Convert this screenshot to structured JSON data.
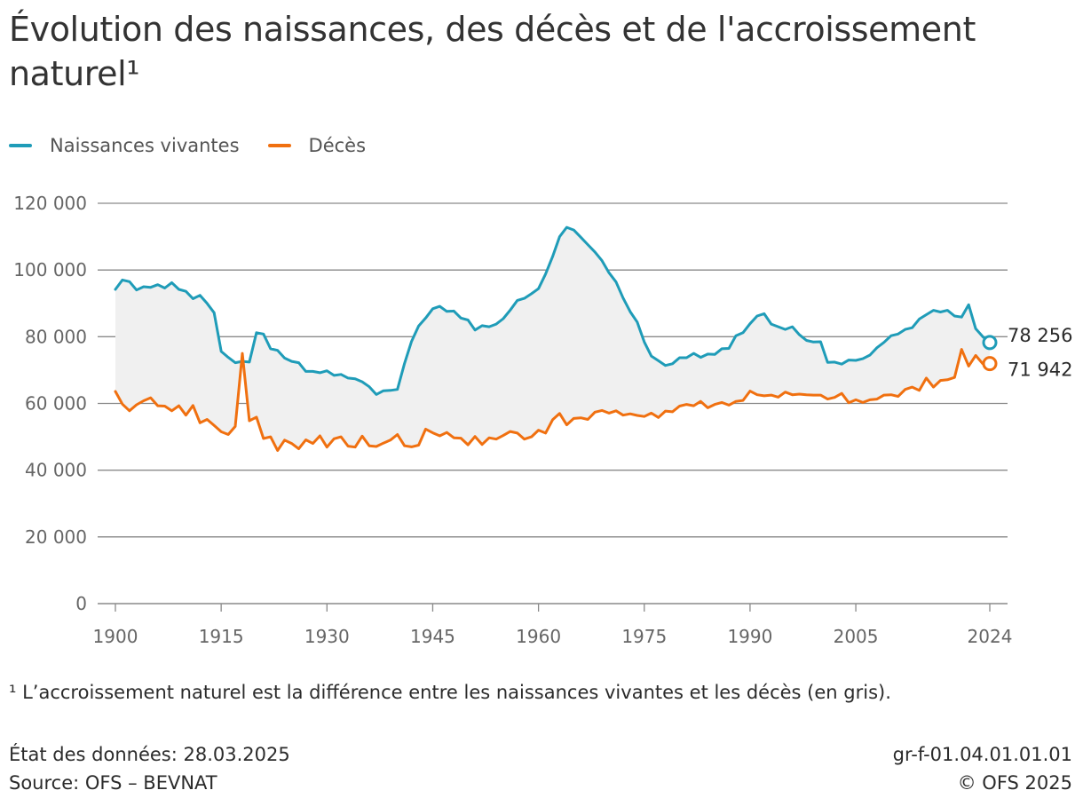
{
  "chart": {
    "title": "Évolution des naissances, des décès et de l'accroissement naturel¹",
    "footnote": "¹ L’accroissement naturel est la différence entre les naissances vivantes et les décès (en gris).",
    "data_state": "État des données: 28.03.2025",
    "source": "Source: OFS – BEVNAT",
    "code": "gr-f-01.04.01.01.01",
    "copyright": "© OFS 2025",
    "legend": [
      {
        "label": "Naissances vivantes",
        "color": "#1f9cb8"
      },
      {
        "label": "Décès",
        "color": "#f07010"
      }
    ]
  },
  "chart_data": {
    "type": "line",
    "title": "Évolution des naissances, des décès et de l'accroissement naturel¹",
    "xlabel": "",
    "ylabel": "",
    "xlim": [
      1900,
      2024
    ],
    "ylim": [
      0,
      120000
    ],
    "x_ticks": [
      1900,
      1915,
      1930,
      1945,
      1960,
      1975,
      1990,
      2005,
      2024
    ],
    "x_tick_labels": [
      "1900",
      "1915",
      "1930",
      "1945",
      "1960",
      "1975",
      "1990",
      "2005",
      "2024"
    ],
    "y_ticks": [
      0,
      20000,
      40000,
      60000,
      80000,
      100000,
      120000
    ],
    "y_tick_labels": [
      "0",
      "20 000",
      "40 000",
      "60 000",
      "80 000",
      "100 000",
      "120 000"
    ],
    "grid": "horizontal",
    "legend_position": "top-left",
    "fill_between": {
      "color": "#f0f0f0",
      "meaning": "accroissement naturel"
    },
    "end_labels": [
      "78 256",
      "71 942"
    ],
    "x": [
      1900,
      1901,
      1902,
      1903,
      1904,
      1905,
      1906,
      1907,
      1908,
      1909,
      1910,
      1911,
      1912,
      1913,
      1914,
      1915,
      1916,
      1917,
      1918,
      1919,
      1920,
      1921,
      1922,
      1923,
      1924,
      1925,
      1926,
      1927,
      1928,
      1929,
      1930,
      1931,
      1932,
      1933,
      1934,
      1935,
      1936,
      1937,
      1938,
      1939,
      1940,
      1941,
      1942,
      1943,
      1944,
      1945,
      1946,
      1947,
      1948,
      1949,
      1950,
      1951,
      1952,
      1953,
      1954,
      1955,
      1956,
      1957,
      1958,
      1959,
      1960,
      1961,
      1962,
      1963,
      1964,
      1965,
      1966,
      1967,
      1968,
      1969,
      1970,
      1971,
      1972,
      1973,
      1974,
      1975,
      1976,
      1977,
      1978,
      1979,
      1980,
      1981,
      1982,
      1983,
      1984,
      1985,
      1986,
      1987,
      1988,
      1989,
      1990,
      1991,
      1992,
      1993,
      1994,
      1995,
      1996,
      1997,
      1998,
      1999,
      2000,
      2001,
      2002,
      2003,
      2004,
      2005,
      2006,
      2007,
      2008,
      2009,
      2010,
      2011,
      2012,
      2013,
      2014,
      2015,
      2016,
      2017,
      2018,
      2019,
      2020,
      2021,
      2022,
      2023,
      2024
    ],
    "series": [
      {
        "name": "Naissances vivantes",
        "color": "#1f9cb8",
        "values": [
          94200,
          97000,
          96500,
          94000,
          95000,
          94800,
          95600,
          94600,
          96200,
          94200,
          93600,
          91400,
          92400,
          90000,
          87200,
          75600,
          73800,
          72200,
          72600,
          72400,
          81200,
          80800,
          76400,
          75900,
          73600,
          72600,
          72200,
          69600,
          69600,
          69200,
          69800,
          68400,
          68700,
          67600,
          67400,
          66500,
          65000,
          62700,
          63800,
          63900,
          64200,
          72000,
          78600,
          83200,
          85600,
          88400,
          89100,
          87600,
          87700,
          85600,
          85000,
          82000,
          83300,
          83000,
          83800,
          85400,
          88000,
          90900,
          91500,
          92900,
          94400,
          98800,
          104000,
          110000,
          112800,
          112000,
          109800,
          107600,
          105400,
          102800,
          99200,
          96400,
          91600,
          87500,
          84400,
          78400,
          74200,
          72800,
          71400,
          71900,
          73700,
          73700,
          75000,
          73800,
          74800,
          74700,
          76400,
          76500,
          80300,
          81200,
          83900,
          86200,
          86900,
          83800,
          83000,
          82200,
          83000,
          80600,
          78900,
          78400,
          78500,
          72300,
          72400,
          71800,
          73000,
          72900,
          73400,
          74500,
          76700,
          78300,
          80300,
          80800,
          82200,
          82700,
          85300,
          86600,
          87900,
          87400,
          87900,
          86200,
          85900,
          89600,
          82400,
          80000,
          78256
        ]
      },
      {
        "name": "Décès",
        "color": "#f07010",
        "values": [
          63600,
          59800,
          57800,
          59600,
          60800,
          61700,
          59300,
          59200,
          57800,
          59300,
          56500,
          59400,
          54200,
          55200,
          53400,
          51500,
          50700,
          53100,
          75000,
          54800,
          55900,
          49500,
          50000,
          45900,
          49000,
          48000,
          46400,
          49100,
          48000,
          50300,
          46900,
          49400,
          50000,
          47200,
          46900,
          50200,
          47300,
          47100,
          48100,
          49000,
          50700,
          47300,
          47000,
          47500,
          52300,
          51200,
          50300,
          51300,
          49700,
          49600,
          47600,
          50100,
          47700,
          49700,
          49300,
          50400,
          51600,
          51100,
          49300,
          50000,
          52000,
          51100,
          55100,
          57000,
          53600,
          55500,
          55700,
          55200,
          57400,
          57900,
          57100,
          57800,
          56500,
          56900,
          56400,
          56100,
          57100,
          55800,
          57700,
          57500,
          59200,
          59700,
          59300,
          60600,
          58700,
          59700,
          60300,
          59500,
          60600,
          60900,
          63700,
          62600,
          62300,
          62500,
          61900,
          63400,
          62600,
          62800,
          62600,
          62500,
          62500,
          61300,
          61800,
          63000,
          60200,
          61100,
          60300,
          61100,
          61300,
          62500,
          62600,
          62100,
          64200,
          64900,
          63900,
          67600,
          64900,
          66900,
          67100,
          67800,
          76200,
          71200,
          74400,
          71900,
          71942
        ]
      }
    ]
  }
}
